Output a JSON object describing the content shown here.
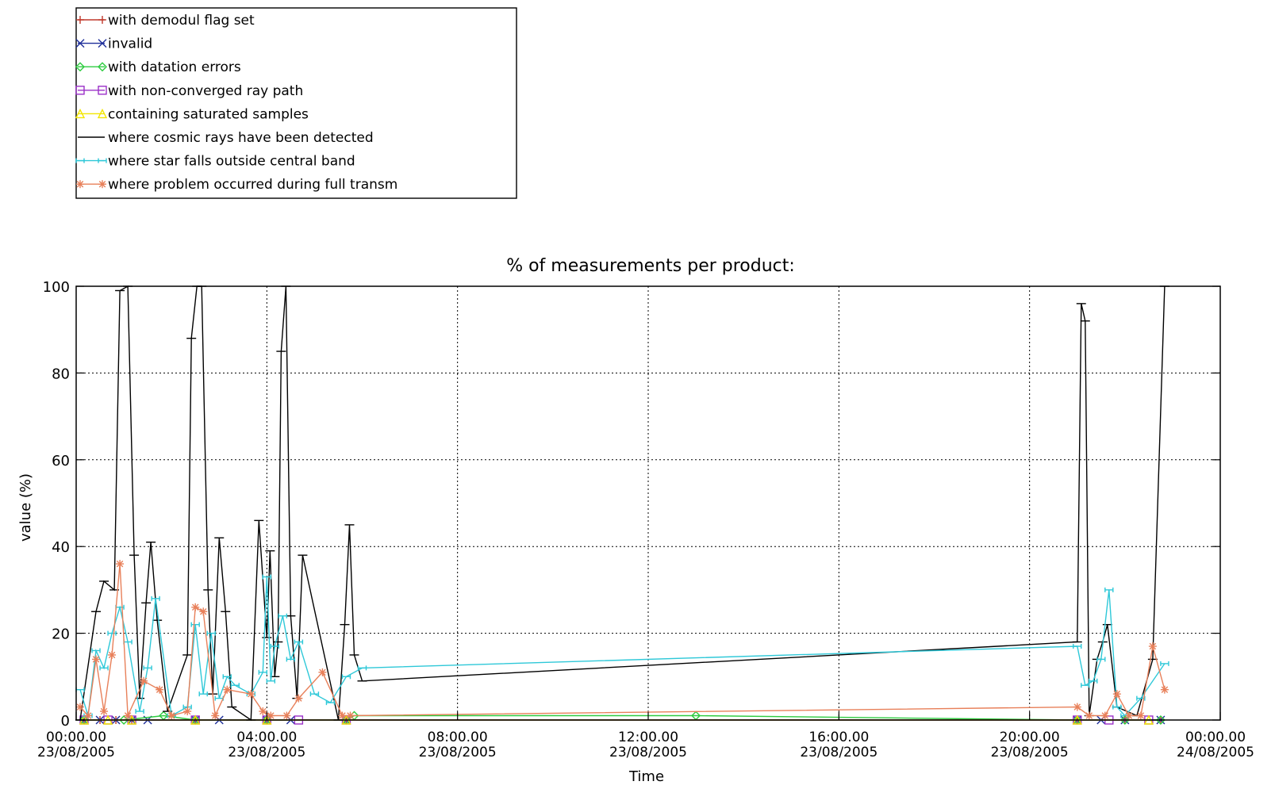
{
  "chart_data": {
    "type": "line",
    "title": "% of measurements per product:",
    "xlabel": "Time",
    "ylabel": "value (%)",
    "ylim": [
      0,
      100
    ],
    "xlim": [
      "23/08/2005 00:00",
      "24/08/2005 00:00"
    ],
    "grid": true,
    "legend_position": "top-left",
    "x_ticks": [
      {
        "time": "00:00.00",
        "date": "23/08/2005"
      },
      {
        "time": "04:00.00",
        "date": "23/08/2005"
      },
      {
        "time": "08:00.00",
        "date": "23/08/2005"
      },
      {
        "time": "12:00.00",
        "date": "23/08/2005"
      },
      {
        "time": "16:00.00",
        "date": "23/08/2005"
      },
      {
        "time": "20:00.00",
        "date": "23/08/2005"
      },
      {
        "time": "00:00.00",
        "date": "24/08/2005"
      }
    ],
    "y_ticks": [
      "0",
      "20",
      "40",
      "60",
      "80",
      "100"
    ],
    "series": [
      {
        "name": "with demodul flag set",
        "color": "#c0392b",
        "marker": "plus",
        "x": [
          "23/08/2005 00:10",
          "23/08/2005 00:30",
          "23/08/2005 00:50",
          "23/08/2005 01:10",
          "23/08/2005 02:30",
          "23/08/2005 04:00",
          "23/08/2005 05:40",
          "23/08/2005 21:00",
          "23/08/2005 22:00",
          "23/08/2005 22:45"
        ],
        "y": [
          0,
          0,
          0,
          0,
          0,
          0,
          0,
          0,
          0,
          0
        ]
      },
      {
        "name": "invalid",
        "color": "#1f2f9a",
        "marker": "x",
        "x": [
          "23/08/2005 00:10",
          "23/08/2005 00:30",
          "23/08/2005 00:50",
          "23/08/2005 01:10",
          "23/08/2005 01:30",
          "23/08/2005 02:30",
          "23/08/2005 03:00",
          "23/08/2005 04:00",
          "23/08/2005 04:30",
          "23/08/2005 05:40",
          "23/08/2005 21:00",
          "23/08/2005 21:30",
          "23/08/2005 22:00",
          "23/08/2005 22:45"
        ],
        "y": [
          0,
          0,
          0,
          0,
          0,
          0,
          0,
          0,
          0,
          0,
          0,
          0,
          0,
          0
        ]
      },
      {
        "name": "with datation errors",
        "color": "#2ecc40",
        "marker": "diamond",
        "x": [
          "23/08/2005 00:10",
          "23/08/2005 01:00",
          "23/08/2005 01:50",
          "23/08/2005 02:30",
          "23/08/2005 04:00",
          "23/08/2005 05:40",
          "23/08/2005 05:50",
          "23/08/2005 13:00",
          "23/08/2005 21:00",
          "23/08/2005 22:00",
          "23/08/2005 22:45"
        ],
        "y": [
          0,
          0,
          1,
          0,
          0,
          0,
          1,
          1,
          0,
          0,
          0
        ]
      },
      {
        "name": "with non-converged ray path",
        "color": "#9b30c8",
        "marker": "square",
        "x": [
          "23/08/2005 00:10",
          "23/08/2005 00:40",
          "23/08/2005 01:10",
          "23/08/2005 02:30",
          "23/08/2005 04:00",
          "23/08/2005 04:40",
          "23/08/2005 05:40",
          "23/08/2005 21:00",
          "23/08/2005 21:40",
          "23/08/2005 22:30"
        ],
        "y": [
          0,
          0,
          0,
          0,
          0,
          0,
          0,
          0,
          0,
          0
        ]
      },
      {
        "name": "containing saturated samples",
        "color": "#f2e600",
        "marker": "triangle",
        "x": [
          "23/08/2005 00:10",
          "23/08/2005 00:40",
          "23/08/2005 01:10",
          "23/08/2005 02:30",
          "23/08/2005 04:00",
          "23/08/2005 05:40",
          "23/08/2005 21:00",
          "23/08/2005 22:30"
        ],
        "y": [
          0,
          0,
          0,
          0,
          0,
          0,
          0,
          0
        ]
      },
      {
        "name": "where cosmic rays have been detected",
        "color": "#000000",
        "marker": "dash",
        "x": [
          "23/08/2005 00:05",
          "23/08/2005 00:25",
          "23/08/2005 00:35",
          "23/08/2005 00:48",
          "23/08/2005 00:55",
          "23/08/2005 01:05",
          "23/08/2005 01:13",
          "23/08/2005 01:20",
          "23/08/2005 01:28",
          "23/08/2005 01:34",
          "23/08/2005 01:42",
          "23/08/2005 01:55",
          "23/08/2005 02:20",
          "23/08/2005 02:25",
          "23/08/2005 02:32",
          "23/08/2005 02:38",
          "23/08/2005 02:46",
          "23/08/2005 02:52",
          "23/08/2005 03:00",
          "23/08/2005 03:08",
          "23/08/2005 03:16",
          "23/08/2005 03:40",
          "23/08/2005 03:50",
          "23/08/2005 04:00",
          "23/08/2005 04:04",
          "23/08/2005 04:10",
          "23/08/2005 04:14",
          "23/08/2005 04:18",
          "23/08/2005 04:24",
          "23/08/2005 04:30",
          "23/08/2005 04:38",
          "23/08/2005 04:45",
          "23/08/2005 05:30",
          "23/08/2005 05:38",
          "23/08/2005 05:44",
          "23/08/2005 05:50",
          "23/08/2005 06:00",
          "23/08/2005 21:00",
          "23/08/2005 21:05",
          "23/08/2005 21:10",
          "23/08/2005 21:15",
          "23/08/2005 21:25",
          "23/08/2005 21:32",
          "23/08/2005 21:38",
          "23/08/2005 21:50",
          "23/08/2005 22:15",
          "23/08/2005 22:35",
          "23/08/2005 22:50"
        ],
        "y": [
          0,
          25,
          32,
          30,
          99,
          100,
          38,
          5,
          27,
          41,
          23,
          2,
          15,
          88,
          100,
          100,
          30,
          6,
          42,
          25,
          3,
          0,
          46,
          19,
          39,
          10,
          18,
          85,
          100,
          24,
          5,
          38,
          0,
          22,
          45,
          15,
          9,
          18,
          96,
          92,
          1,
          14,
          18,
          22,
          3,
          1,
          14,
          100
        ]
      },
      {
        "name": "where star falls outside central band",
        "color": "#2ec8d8",
        "marker": "hline",
        "x": [
          "23/08/2005 00:05",
          "23/08/2005 00:15",
          "23/08/2005 00:25",
          "23/08/2005 00:35",
          "23/08/2005 00:45",
          "23/08/2005 00:55",
          "23/08/2005 01:05",
          "23/08/2005 01:20",
          "23/08/2005 01:30",
          "23/08/2005 01:40",
          "23/08/2005 02:00",
          "23/08/2005 02:20",
          "23/08/2005 02:30",
          "23/08/2005 02:40",
          "23/08/2005 02:50",
          "23/08/2005 03:00",
          "23/08/2005 03:10",
          "23/08/2005 03:20",
          "23/08/2005 03:40",
          "23/08/2005 03:55",
          "23/08/2005 04:00",
          "23/08/2005 04:05",
          "23/08/2005 04:10",
          "23/08/2005 04:20",
          "23/08/2005 04:30",
          "23/08/2005 04:40",
          "23/08/2005 05:00",
          "23/08/2005 05:20",
          "23/08/2005 05:40",
          "23/08/2005 06:00",
          "23/08/2005 21:00",
          "23/08/2005 21:10",
          "23/08/2005 21:20",
          "23/08/2005 21:30",
          "23/08/2005 21:40",
          "23/08/2005 21:50",
          "23/08/2005 22:00",
          "23/08/2005 22:20",
          "23/08/2005 22:50"
        ],
        "y": [
          7,
          1,
          16,
          12,
          20,
          26,
          18,
          2,
          12,
          28,
          1,
          3,
          22,
          6,
          20,
          5,
          10,
          8,
          6,
          11,
          33,
          9,
          17,
          24,
          14,
          18,
          6,
          4,
          10,
          12,
          17,
          8,
          9,
          14,
          30,
          3,
          1,
          5,
          13
        ]
      },
      {
        "name": "where problem occurred during full transm",
        "color": "#e8805a",
        "marker": "asterisk",
        "x": [
          "23/08/2005 00:05",
          "23/08/2005 00:15",
          "23/08/2005 00:25",
          "23/08/2005 00:35",
          "23/08/2005 00:45",
          "23/08/2005 00:55",
          "23/08/2005 01:05",
          "23/08/2005 01:25",
          "23/08/2005 01:45",
          "23/08/2005 02:00",
          "23/08/2005 02:20",
          "23/08/2005 02:30",
          "23/08/2005 02:40",
          "23/08/2005 02:55",
          "23/08/2005 03:10",
          "23/08/2005 03:40",
          "23/08/2005 03:55",
          "23/08/2005 04:05",
          "23/08/2005 04:25",
          "23/08/2005 04:40",
          "23/08/2005 05:10",
          "23/08/2005 05:35",
          "23/08/2005 05:45",
          "23/08/2005 21:00",
          "23/08/2005 21:15",
          "23/08/2005 21:35",
          "23/08/2005 21:50",
          "23/08/2005 22:05",
          "23/08/2005 22:20",
          "23/08/2005 22:35",
          "23/08/2005 22:50"
        ],
        "y": [
          3,
          1,
          14,
          2,
          15,
          36,
          1,
          9,
          7,
          1,
          2,
          26,
          25,
          1,
          7,
          6,
          2,
          1,
          1,
          5,
          11,
          1,
          1,
          3,
          1,
          1,
          6,
          1,
          1,
          17,
          7
        ]
      }
    ]
  }
}
